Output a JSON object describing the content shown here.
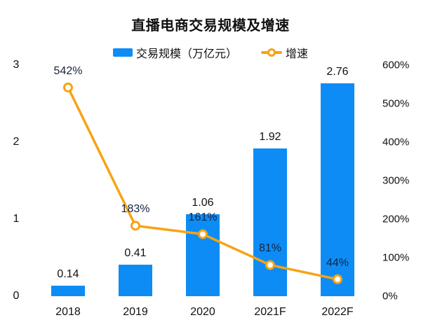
{
  "title": "直播电商交易规模及增速",
  "legend": {
    "bar": "交易规模（万亿元）",
    "line": "增速"
  },
  "colors": {
    "bar": "#0D8CF5",
    "line": "#F7A315",
    "text": "#111111",
    "background": "#FFFFFF"
  },
  "chart_data": {
    "type": "bar",
    "subtype": "bar+line combo, dual axis",
    "title": "直播电商交易规模及增速",
    "categories": [
      "2018",
      "2019",
      "2020",
      "2021F",
      "2022F"
    ],
    "series": [
      {
        "name": "交易规模（万亿元）",
        "type": "bar",
        "axis": "left",
        "values": [
          0.14,
          0.41,
          1.06,
          1.92,
          2.76
        ],
        "labels": [
          "0.14",
          "0.41",
          "1.06",
          "1.92",
          "2.76"
        ]
      },
      {
        "name": "增速",
        "type": "line",
        "axis": "right",
        "values": [
          542,
          183,
          161,
          81,
          44
        ],
        "labels": [
          "542%",
          "183%",
          "161%",
          "81%",
          "44%"
        ]
      }
    ],
    "left_axis": {
      "ticks": [
        "3",
        "2",
        "1",
        "0"
      ],
      "min": 0,
      "max": 3
    },
    "right_axis": {
      "ticks": [
        "600%",
        "500%",
        "400%",
        "300%",
        "200%",
        "100%",
        "0%"
      ],
      "min": 0,
      "max": 600
    },
    "grid": false,
    "legend_position": "top"
  }
}
